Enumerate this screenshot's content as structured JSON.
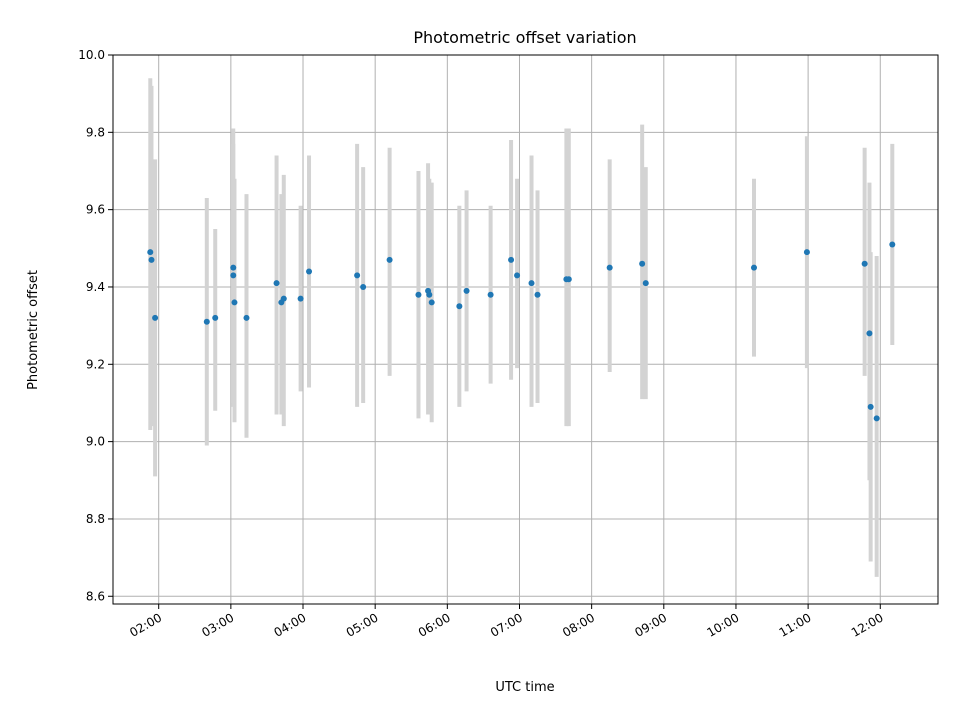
{
  "chart_data": {
    "type": "scatter",
    "title": "Photometric offset variation",
    "xlabel": "UTC time",
    "ylabel": "Photometric offset",
    "x_ticks": [
      "02:00",
      "03:00",
      "04:00",
      "05:00",
      "06:00",
      "07:00",
      "08:00",
      "09:00",
      "10:00",
      "11:00",
      "12:00"
    ],
    "y_ticks": [
      "8.6",
      "8.8",
      "9.0",
      "9.2",
      "9.4",
      "9.6",
      "9.8",
      "10.0"
    ],
    "xlim": [
      "01:22",
      "12:48"
    ],
    "ylim": [
      8.58,
      10.0
    ],
    "grid": true,
    "colors": {
      "point": "#1f77b4",
      "errorbar": "#d3d3d3",
      "grid": "#b0b0b0"
    },
    "points": [
      {
        "t": "01:53",
        "y": 9.49,
        "lo": 9.03,
        "hi": 9.94
      },
      {
        "t": "01:54",
        "y": 9.47,
        "lo": 9.04,
        "hi": 9.92
      },
      {
        "t": "01:57",
        "y": 9.32,
        "lo": 8.91,
        "hi": 9.73
      },
      {
        "t": "02:40",
        "y": 9.31,
        "lo": 8.99,
        "hi": 9.63
      },
      {
        "t": "02:47",
        "y": 9.32,
        "lo": 9.08,
        "hi": 9.55
      },
      {
        "t": "03:02",
        "y": 9.45,
        "lo": 9.09,
        "hi": 9.81
      },
      {
        "t": "03:02",
        "y": 9.43,
        "lo": 9.1,
        "hi": 9.77
      },
      {
        "t": "03:03",
        "y": 9.36,
        "lo": 9.05,
        "hi": 9.68
      },
      {
        "t": "03:13",
        "y": 9.32,
        "lo": 9.01,
        "hi": 9.64
      },
      {
        "t": "03:38",
        "y": 9.41,
        "lo": 9.07,
        "hi": 9.74
      },
      {
        "t": "03:42",
        "y": 9.36,
        "lo": 9.07,
        "hi": 9.64
      },
      {
        "t": "03:44",
        "y": 9.37,
        "lo": 9.04,
        "hi": 9.69
      },
      {
        "t": "03:58",
        "y": 9.37,
        "lo": 9.13,
        "hi": 9.61
      },
      {
        "t": "04:05",
        "y": 9.44,
        "lo": 9.14,
        "hi": 9.74
      },
      {
        "t": "04:45",
        "y": 9.43,
        "lo": 9.09,
        "hi": 9.77
      },
      {
        "t": "04:50",
        "y": 9.4,
        "lo": 9.1,
        "hi": 9.71
      },
      {
        "t": "05:12",
        "y": 9.47,
        "lo": 9.17,
        "hi": 9.76
      },
      {
        "t": "05:36",
        "y": 9.38,
        "lo": 9.06,
        "hi": 9.7
      },
      {
        "t": "05:44",
        "y": 9.39,
        "lo": 9.07,
        "hi": 9.72
      },
      {
        "t": "05:45",
        "y": 9.38,
        "lo": 9.07,
        "hi": 9.68
      },
      {
        "t": "05:47",
        "y": 9.36,
        "lo": 9.05,
        "hi": 9.67
      },
      {
        "t": "06:10",
        "y": 9.35,
        "lo": 9.09,
        "hi": 9.61
      },
      {
        "t": "06:16",
        "y": 9.39,
        "lo": 9.13,
        "hi": 9.65
      },
      {
        "t": "06:36",
        "y": 9.38,
        "lo": 9.15,
        "hi": 9.61
      },
      {
        "t": "06:53",
        "y": 9.47,
        "lo": 9.16,
        "hi": 9.78
      },
      {
        "t": "06:58",
        "y": 9.43,
        "lo": 9.19,
        "hi": 9.68
      },
      {
        "t": "07:10",
        "y": 9.41,
        "lo": 9.09,
        "hi": 9.74
      },
      {
        "t": "07:15",
        "y": 9.38,
        "lo": 9.1,
        "hi": 9.65
      },
      {
        "t": "07:39",
        "y": 9.42,
        "lo": 9.04,
        "hi": 9.81
      },
      {
        "t": "07:41",
        "y": 9.42,
        "lo": 9.04,
        "hi": 9.81
      },
      {
        "t": "08:15",
        "y": 9.45,
        "lo": 9.18,
        "hi": 9.73
      },
      {
        "t": "08:42",
        "y": 9.46,
        "lo": 9.11,
        "hi": 9.82
      },
      {
        "t": "08:45",
        "y": 9.41,
        "lo": 9.11,
        "hi": 9.71
      },
      {
        "t": "10:15",
        "y": 9.45,
        "lo": 9.22,
        "hi": 9.68
      },
      {
        "t": "10:59",
        "y": 9.49,
        "lo": 9.19,
        "hi": 9.79
      },
      {
        "t": "11:47",
        "y": 9.46,
        "lo": 9.17,
        "hi": 9.76
      },
      {
        "t": "11:51",
        "y": 9.28,
        "lo": 8.9,
        "hi": 9.67
      },
      {
        "t": "11:52",
        "y": 9.09,
        "lo": 8.69,
        "hi": 9.49
      },
      {
        "t": "11:57",
        "y": 9.06,
        "lo": 8.65,
        "hi": 9.48
      },
      {
        "t": "12:10",
        "y": 9.51,
        "lo": 9.25,
        "hi": 9.77
      }
    ]
  }
}
